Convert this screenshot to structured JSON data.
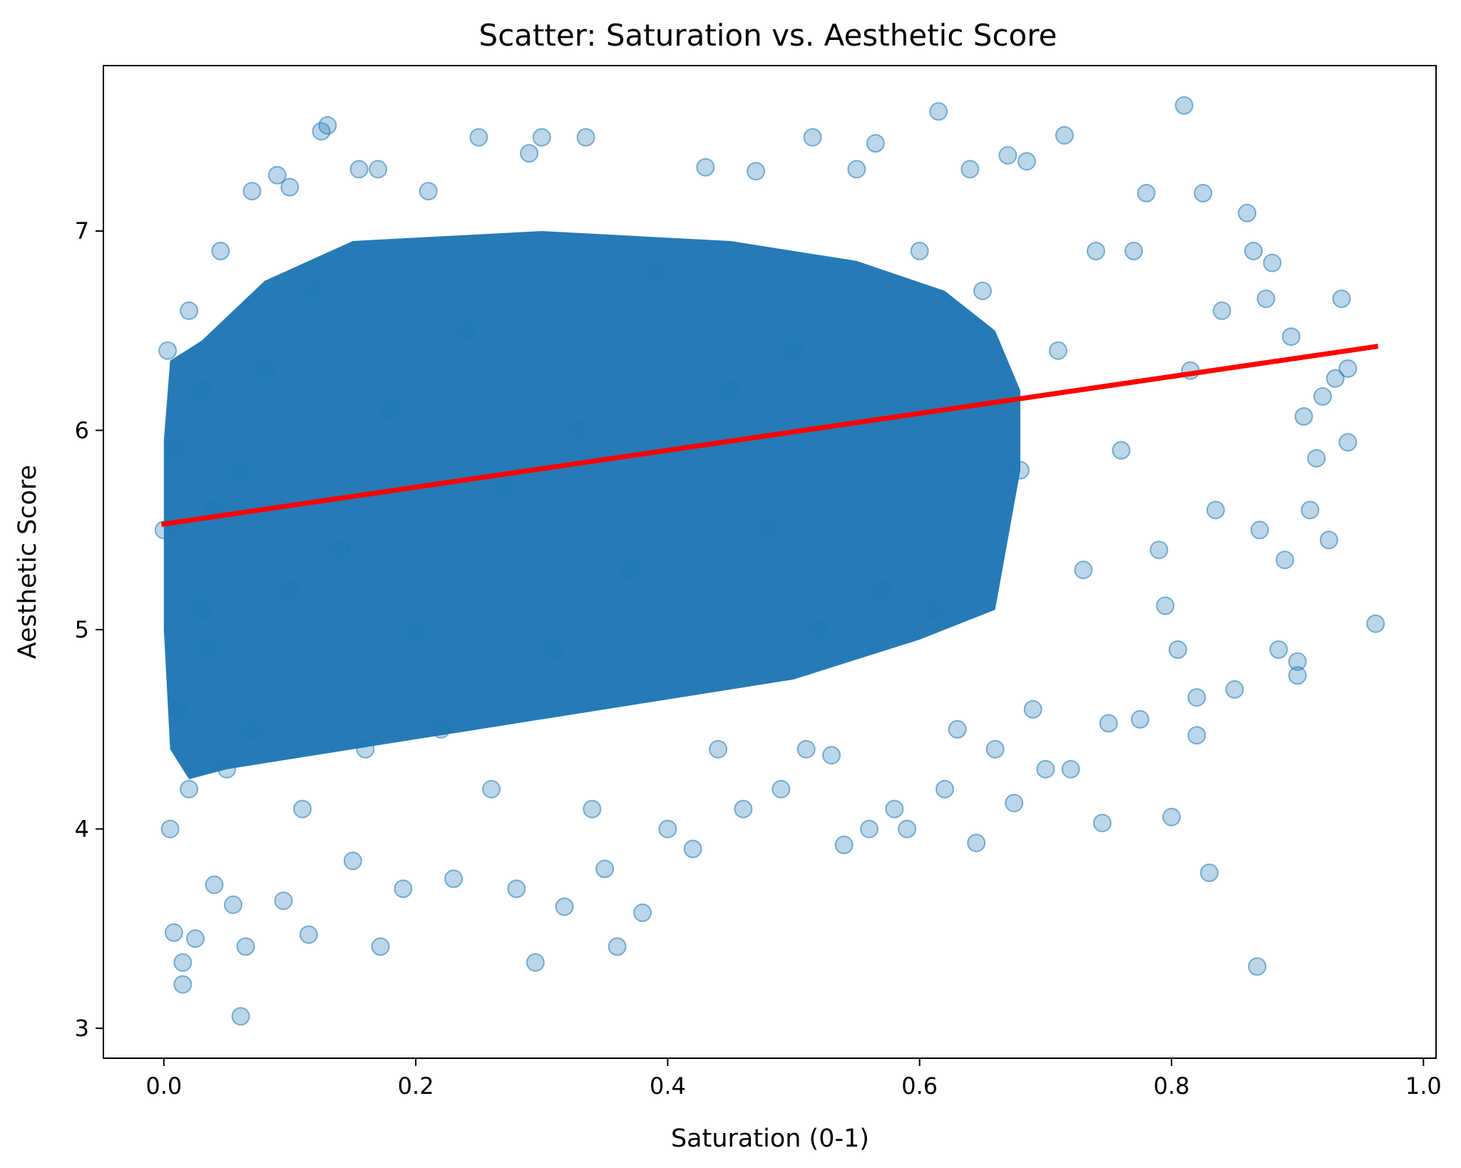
{
  "chart_data": {
    "type": "scatter",
    "title": "Scatter: Saturation vs. Aesthetic Score",
    "xlabel": "Saturation (0-1)",
    "ylabel": "Aesthetic Score",
    "xlim": [
      -0.048,
      1.01
    ],
    "ylim": [
      2.85,
      7.83
    ],
    "xticks": [
      0.0,
      0.2,
      0.4,
      0.6,
      0.8,
      1.0
    ],
    "xtick_labels": [
      "0.0",
      "0.2",
      "0.4",
      "0.6",
      "0.8",
      "1.0"
    ],
    "yticks": [
      3,
      4,
      5,
      6,
      7
    ],
    "ytick_labels": [
      "3",
      "4",
      "5",
      "6",
      "7"
    ],
    "grid": false,
    "legend": "none",
    "series": [
      {
        "name": "points",
        "color": "#1f77b4",
        "alpha": 0.3,
        "points": [
          [
            0.0,
            5.5
          ],
          [
            0.003,
            6.4
          ],
          [
            0.005,
            4.0
          ],
          [
            0.008,
            3.48
          ],
          [
            0.01,
            5.9
          ],
          [
            0.012,
            4.6
          ],
          [
            0.015,
            3.22
          ],
          [
            0.015,
            3.33
          ],
          [
            0.02,
            6.6
          ],
          [
            0.02,
            4.2
          ],
          [
            0.025,
            3.45
          ],
          [
            0.03,
            5.1
          ],
          [
            0.03,
            6.2
          ],
          [
            0.035,
            4.9
          ],
          [
            0.04,
            3.72
          ],
          [
            0.04,
            5.6
          ],
          [
            0.045,
            6.9
          ],
          [
            0.05,
            4.3
          ],
          [
            0.055,
            3.62
          ],
          [
            0.06,
            5.8
          ],
          [
            0.061,
            3.06
          ],
          [
            0.065,
            3.41
          ],
          [
            0.07,
            7.2
          ],
          [
            0.07,
            4.5
          ],
          [
            0.08,
            6.3
          ],
          [
            0.09,
            7.28
          ],
          [
            0.095,
            3.64
          ],
          [
            0.1,
            5.2
          ],
          [
            0.1,
            7.22
          ],
          [
            0.11,
            4.1
          ],
          [
            0.115,
            3.47
          ],
          [
            0.12,
            6.7
          ],
          [
            0.125,
            7.5
          ],
          [
            0.13,
            7.53
          ],
          [
            0.14,
            5.4
          ],
          [
            0.15,
            3.84
          ],
          [
            0.155,
            7.31
          ],
          [
            0.16,
            4.4
          ],
          [
            0.17,
            7.31
          ],
          [
            0.172,
            3.41
          ],
          [
            0.18,
            6.1
          ],
          [
            0.19,
            3.7
          ],
          [
            0.2,
            5.0
          ],
          [
            0.21,
            7.2
          ],
          [
            0.22,
            4.5
          ],
          [
            0.23,
            3.75
          ],
          [
            0.24,
            6.5
          ],
          [
            0.25,
            7.47
          ],
          [
            0.26,
            4.2
          ],
          [
            0.27,
            5.7
          ],
          [
            0.28,
            3.7
          ],
          [
            0.29,
            7.39
          ],
          [
            0.295,
            3.33
          ],
          [
            0.3,
            7.47
          ],
          [
            0.31,
            4.9
          ],
          [
            0.318,
            3.61
          ],
          [
            0.33,
            6.0
          ],
          [
            0.335,
            7.47
          ],
          [
            0.34,
            4.1
          ],
          [
            0.35,
            3.8
          ],
          [
            0.36,
            3.41
          ],
          [
            0.37,
            5.3
          ],
          [
            0.38,
            3.58
          ],
          [
            0.39,
            6.8
          ],
          [
            0.4,
            4.0
          ],
          [
            0.41,
            5.9
          ],
          [
            0.42,
            3.9
          ],
          [
            0.43,
            7.32
          ],
          [
            0.44,
            4.4
          ],
          [
            0.45,
            6.2
          ],
          [
            0.46,
            4.1
          ],
          [
            0.47,
            7.3
          ],
          [
            0.48,
            5.5
          ],
          [
            0.49,
            4.2
          ],
          [
            0.5,
            6.4
          ],
          [
            0.51,
            4.4
          ],
          [
            0.515,
            7.47
          ],
          [
            0.52,
            5.0
          ],
          [
            0.53,
            4.37
          ],
          [
            0.54,
            3.92
          ],
          [
            0.55,
            7.31
          ],
          [
            0.56,
            4.0
          ],
          [
            0.565,
            7.44
          ],
          [
            0.57,
            5.2
          ],
          [
            0.58,
            4.1
          ],
          [
            0.59,
            4.0
          ],
          [
            0.6,
            6.9
          ],
          [
            0.61,
            5.1
          ],
          [
            0.615,
            7.6
          ],
          [
            0.62,
            4.2
          ],
          [
            0.63,
            4.5
          ],
          [
            0.64,
            7.31
          ],
          [
            0.645,
            3.93
          ],
          [
            0.65,
            6.7
          ],
          [
            0.66,
            4.4
          ],
          [
            0.67,
            7.38
          ],
          [
            0.675,
            4.13
          ],
          [
            0.68,
            5.8
          ],
          [
            0.685,
            7.35
          ],
          [
            0.69,
            4.6
          ],
          [
            0.7,
            4.3
          ],
          [
            0.71,
            6.4
          ],
          [
            0.715,
            7.48
          ],
          [
            0.72,
            4.3
          ],
          [
            0.73,
            5.3
          ],
          [
            0.74,
            6.9
          ],
          [
            0.745,
            4.03
          ],
          [
            0.75,
            4.53
          ],
          [
            0.76,
            5.9
          ],
          [
            0.77,
            6.9
          ],
          [
            0.775,
            4.55
          ],
          [
            0.78,
            7.19
          ],
          [
            0.79,
            5.4
          ],
          [
            0.795,
            5.12
          ],
          [
            0.8,
            4.06
          ],
          [
            0.805,
            4.9
          ],
          [
            0.81,
            7.63
          ],
          [
            0.815,
            6.3
          ],
          [
            0.82,
            4.66
          ],
          [
            0.82,
            4.47
          ],
          [
            0.825,
            7.19
          ],
          [
            0.83,
            3.78
          ],
          [
            0.835,
            5.6
          ],
          [
            0.84,
            6.6
          ],
          [
            0.85,
            4.7
          ],
          [
            0.86,
            7.09
          ],
          [
            0.865,
            6.9
          ],
          [
            0.868,
            3.31
          ],
          [
            0.87,
            5.5
          ],
          [
            0.875,
            6.66
          ],
          [
            0.88,
            6.84
          ],
          [
            0.885,
            4.9
          ],
          [
            0.89,
            5.35
          ],
          [
            0.895,
            6.47
          ],
          [
            0.9,
            4.77
          ],
          [
            0.9,
            4.84
          ],
          [
            0.905,
            6.07
          ],
          [
            0.91,
            5.6
          ],
          [
            0.915,
            5.86
          ],
          [
            0.92,
            6.17
          ],
          [
            0.925,
            5.45
          ],
          [
            0.93,
            6.26
          ],
          [
            0.935,
            6.66
          ],
          [
            0.94,
            5.94
          ],
          [
            0.94,
            6.31
          ],
          [
            0.962,
            5.03
          ]
        ]
      }
    ],
    "regression_line": {
      "color": "#ff0000",
      "x": [
        0.0,
        0.962
      ],
      "y": [
        5.53,
        6.42
      ]
    }
  }
}
